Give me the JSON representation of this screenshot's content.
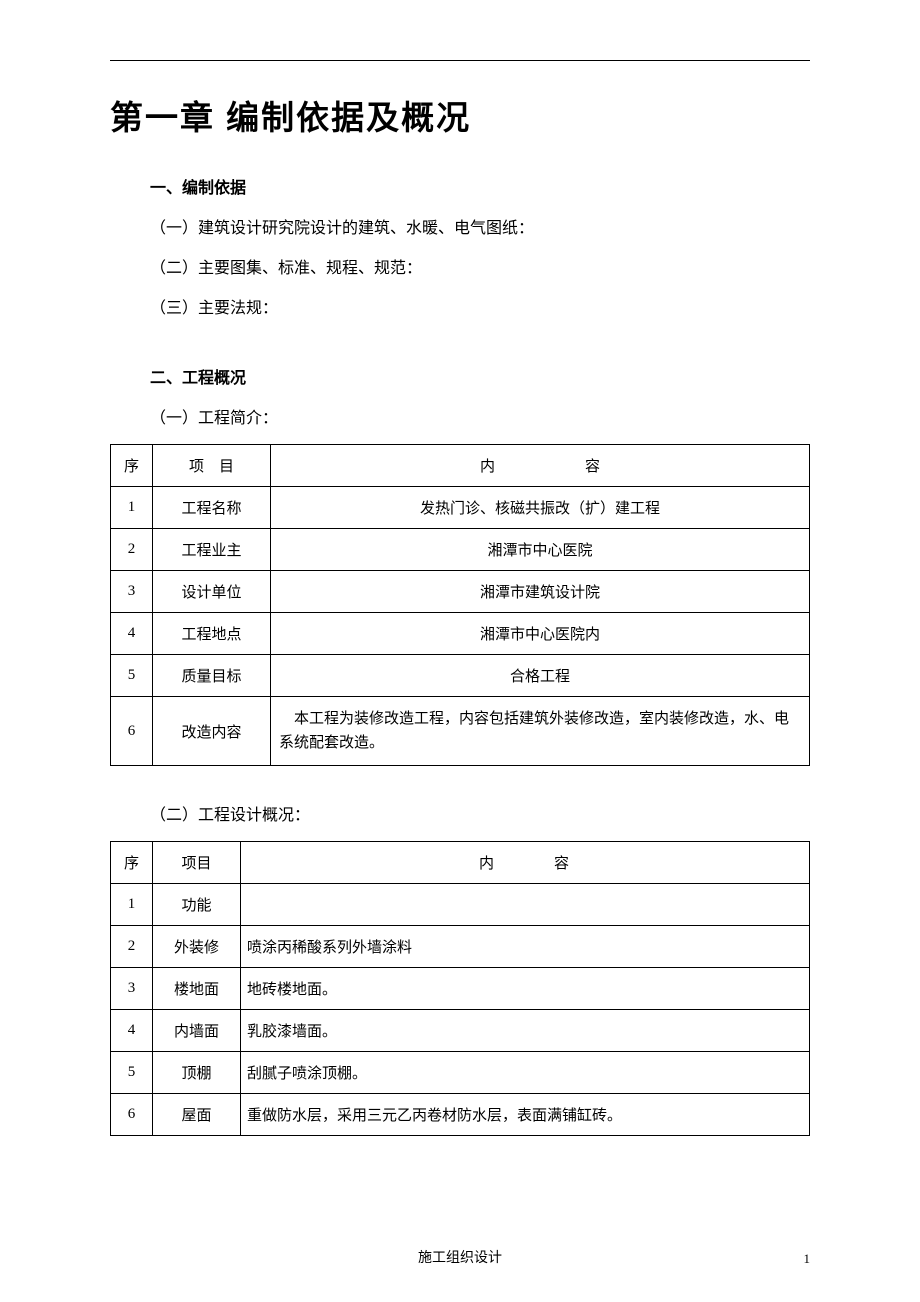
{
  "chapter_title": "第一章 编制依据及概况",
  "section1": {
    "heading": "一、编制依据",
    "items": [
      "（一）建筑设计研究院设计的建筑、水暖、电气图纸：",
      "（二）主要图集、标准、规程、规范：",
      "（三）主要法规："
    ]
  },
  "section2": {
    "heading": "二、工程概况",
    "sub1": "（一）工程简介：",
    "sub2": "（二）工程设计概况："
  },
  "table1": {
    "columns": [
      "序",
      "项　目",
      "内　　　　　　容"
    ],
    "rows": [
      [
        "1",
        "工程名称",
        "发热门诊、核磁共振改（扩）建工程"
      ],
      [
        "2",
        "工程业主",
        "湘潭市中心医院"
      ],
      [
        "3",
        "设计单位",
        "湘潭市建筑设计院"
      ],
      [
        "4",
        "工程地点",
        "湘潭市中心医院内"
      ],
      [
        "5",
        "质量目标",
        "合格工程"
      ],
      [
        "6",
        "改造内容",
        "本工程为装修改造工程，内容包括建筑外装修改造，室内装修改造，水、电系统配套改造。"
      ]
    ]
  },
  "table2": {
    "columns": [
      "序",
      "项目",
      "内　　　　容"
    ],
    "rows": [
      [
        "1",
        "功能",
        ""
      ],
      [
        "2",
        "外装修",
        "喷涂丙稀酸系列外墙涂料"
      ],
      [
        "3",
        "楼地面",
        "地砖楼地面。"
      ],
      [
        "4",
        "内墙面",
        "乳胶漆墙面。"
      ],
      [
        "5",
        "顶棚",
        "刮腻子喷涂顶棚。"
      ],
      [
        "6",
        "屋面",
        "重做防水层，采用三元乙丙卷材防水层，表面满铺缸砖。"
      ]
    ]
  },
  "footer": "施工组织设计",
  "page_number": "1"
}
